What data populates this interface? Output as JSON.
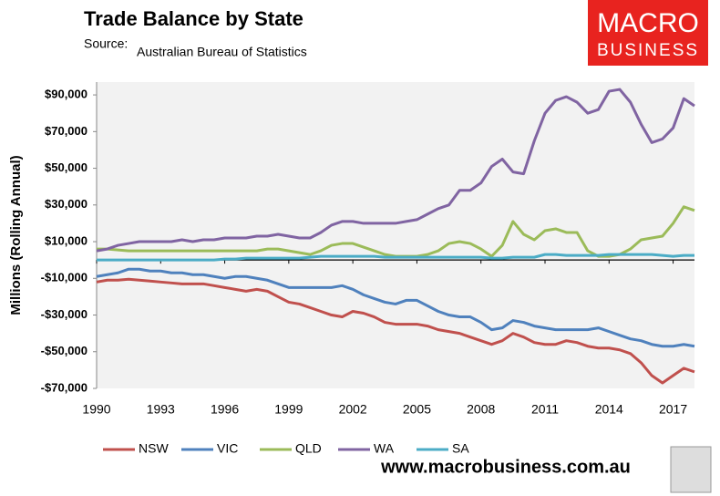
{
  "chart_data": {
    "type": "line",
    "title": "Trade Balance by State",
    "source_label": "Source:",
    "source": "Australian Bureau of Statistics",
    "ylabel": "Millions (Rolling Annual)",
    "logo": [
      "MACRO",
      "BUSINESS"
    ],
    "footer": "www.macrobusiness.com.au",
    "x": [
      1990,
      1990.5,
      1991,
      1991.5,
      1992,
      1992.5,
      1993,
      1993.5,
      1994,
      1994.5,
      1995,
      1995.5,
      1996,
      1996.5,
      1997,
      1997.5,
      1998,
      1998.5,
      1999,
      1999.5,
      2000,
      2000.5,
      2001,
      2001.5,
      2002,
      2002.5,
      2003,
      2003.5,
      2004,
      2004.5,
      2005,
      2005.5,
      2006,
      2006.5,
      2007,
      2007.5,
      2008,
      2008.5,
      2009,
      2009.5,
      2010,
      2010.5,
      2011,
      2011.5,
      2012,
      2012.5,
      2013,
      2013.5,
      2014,
      2014.5,
      2015,
      2015.5,
      2016,
      2016.5,
      2017,
      2017.5,
      2018
    ],
    "xlim": [
      1990,
      2018
    ],
    "xticks": [
      1990,
      1993,
      1996,
      1999,
      2002,
      2005,
      2008,
      2011,
      2014,
      2017
    ],
    "ylim": [
      -70000,
      97000
    ],
    "yticks": [
      {
        "value": -70000,
        "label": "-$70,000"
      },
      {
        "value": -50000,
        "label": "-$50,000"
      },
      {
        "value": -30000,
        "label": "-$30,000"
      },
      {
        "value": -10000,
        "label": "-$10,000"
      },
      {
        "value": 10000,
        "label": "$10,000"
      },
      {
        "value": 30000,
        "label": "$30,000"
      },
      {
        "value": 50000,
        "label": "$50,000"
      },
      {
        "value": 70000,
        "label": "$70,000"
      },
      {
        "value": 90000,
        "label": "$90,000"
      }
    ],
    "legend": "bottom",
    "series": [
      {
        "name": "NSW",
        "color": "#c0504d",
        "values": [
          -12000,
          -11000,
          -11000,
          -10500,
          -11000,
          -11500,
          -12000,
          -12500,
          -13000,
          -13000,
          -13000,
          -14000,
          -15000,
          -16000,
          -17000,
          -16000,
          -17000,
          -20000,
          -23000,
          -24000,
          -26000,
          -28000,
          -30000,
          -31000,
          -28000,
          -29000,
          -31000,
          -34000,
          -35000,
          -35000,
          -35000,
          -36000,
          -38000,
          -39000,
          -40000,
          -42000,
          -44000,
          -46000,
          -44000,
          -40000,
          -42000,
          -45000,
          -46000,
          -46000,
          -44000,
          -45000,
          -47000,
          -48000,
          -48000,
          -49000,
          -51000,
          -56000,
          -63000,
          -67000,
          -63000,
          -59000,
          -61000
        ]
      },
      {
        "name": "VIC",
        "color": "#4f81bd",
        "values": [
          -9000,
          -8000,
          -7000,
          -5000,
          -5000,
          -6000,
          -6000,
          -7000,
          -7000,
          -8000,
          -8000,
          -9000,
          -10000,
          -9000,
          -9000,
          -10000,
          -11000,
          -13000,
          -15000,
          -15000,
          -15000,
          -15000,
          -15000,
          -14000,
          -16000,
          -19000,
          -21000,
          -23000,
          -24000,
          -22000,
          -22000,
          -25000,
          -28000,
          -30000,
          -31000,
          -31000,
          -34000,
          -38000,
          -37000,
          -33000,
          -34000,
          -36000,
          -37000,
          -38000,
          -38000,
          -38000,
          -38000,
          -37000,
          -39000,
          -41000,
          -43000,
          -44000,
          -46000,
          -47000,
          -47000,
          -46000,
          -47000
        ]
      },
      {
        "name": "QLD",
        "color": "#9bbb59",
        "values": [
          6000,
          6000,
          5500,
          5000,
          5000,
          5000,
          5000,
          5000,
          5000,
          5000,
          5000,
          5000,
          5000,
          5000,
          5000,
          5000,
          6000,
          6000,
          5000,
          4000,
          3000,
          5000,
          8000,
          9000,
          9000,
          7000,
          5000,
          3000,
          2000,
          2000,
          2000,
          3000,
          5000,
          9000,
          10000,
          9000,
          6000,
          2000,
          8000,
          21000,
          14000,
          11000,
          16000,
          17000,
          15000,
          15000,
          5000,
          2000,
          2000,
          3000,
          6000,
          11000,
          12000,
          13000,
          20000,
          29000,
          27000
        ]
      },
      {
        "name": "WA",
        "color": "#8064a2",
        "values": [
          5000,
          6000,
          8000,
          9000,
          10000,
          10000,
          10000,
          10000,
          11000,
          10000,
          11000,
          11000,
          12000,
          12000,
          12000,
          13000,
          13000,
          14000,
          13000,
          12000,
          12000,
          15000,
          19000,
          21000,
          21000,
          20000,
          20000,
          20000,
          20000,
          21000,
          22000,
          25000,
          28000,
          30000,
          38000,
          38000,
          42000,
          51000,
          55000,
          48000,
          47000,
          65000,
          80000,
          87000,
          89000,
          86000,
          80000,
          82000,
          92000,
          93000,
          86000,
          74000,
          64000,
          66000,
          72000,
          88000,
          84000
        ]
      },
      {
        "name": "SA",
        "color": "#4bacc6",
        "values": [
          0,
          0,
          0,
          0,
          0,
          0,
          0,
          0,
          0,
          0,
          0,
          0,
          500,
          500,
          1000,
          1000,
          1000,
          1000,
          1000,
          1000,
          1500,
          2000,
          2000,
          2000,
          2000,
          2000,
          2000,
          1500,
          1500,
          1500,
          1500,
          1500,
          1500,
          1500,
          1500,
          1500,
          1500,
          1000,
          1000,
          1500,
          1500,
          1500,
          3000,
          3000,
          2500,
          2500,
          2500,
          2500,
          3000,
          3000,
          3000,
          3000,
          3000,
          2500,
          2000,
          2500,
          2500
        ]
      }
    ]
  }
}
